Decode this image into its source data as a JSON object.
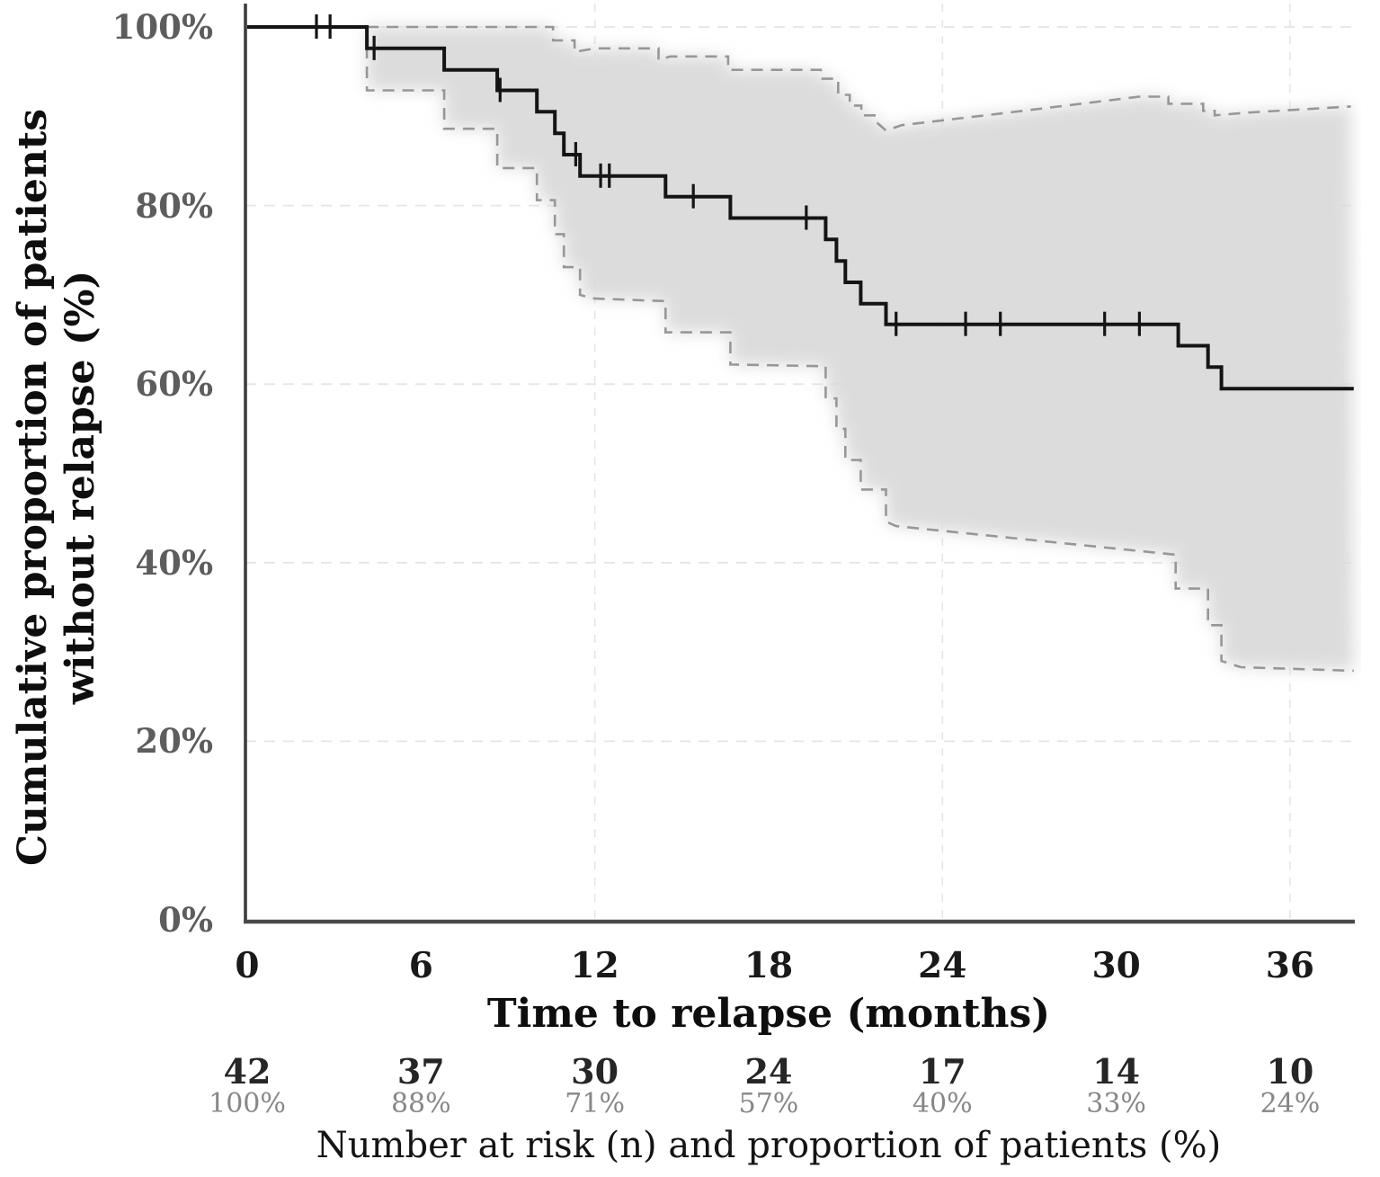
{
  "figure": {
    "ylabel_line1": "Cumulative proportion of patients",
    "ylabel_line2": "without relapse (%)",
    "xlabel": "Time to relapse (months)",
    "risk_caption": "Number at risk (n) and proportion of patients (%)"
  },
  "colors": {
    "curve": "#141414",
    "ci_line": "#979797",
    "ci_band": "#dadada",
    "grid": "#e5e5e5",
    "axis_y": "#3d3d3d",
    "axis_x": "#4a4a4a",
    "y_tick_text": "#5d5d5d",
    "x_tick_text": "#191919",
    "risk_pct_text": "#878787"
  },
  "chart_data": {
    "type": "line",
    "subtype": "kaplan-meier-step",
    "title": "",
    "xlabel": "Time to relapse (months)",
    "ylabel": "Cumulative proportion of patients without relapse (%)",
    "xlim": [
      0,
      38.5
    ],
    "ylim": [
      0,
      100
    ],
    "grid": {
      "horizontal_pct": [
        100,
        80,
        60,
        40,
        20
      ],
      "vertical_months": [
        12,
        24,
        36
      ]
    },
    "x_ticks": [
      {
        "value": 0,
        "label": "0"
      },
      {
        "value": 6,
        "label": "6"
      },
      {
        "value": 12,
        "label": "12"
      },
      {
        "value": 18,
        "label": "18"
      },
      {
        "value": 24,
        "label": "24"
      },
      {
        "value": 30,
        "label": "30"
      },
      {
        "value": 36,
        "label": "36"
      }
    ],
    "y_ticks": [
      {
        "value": 100,
        "label": "100%"
      },
      {
        "value": 80,
        "label": "80%"
      },
      {
        "value": 60,
        "label": "60%"
      },
      {
        "value": 40,
        "label": "40%"
      },
      {
        "value": 20,
        "label": "20%"
      },
      {
        "value": 0,
        "label": "0%"
      }
    ],
    "series": [
      {
        "name": "Kaplan-Meier estimate",
        "style": "solid-step",
        "points": [
          [
            0,
            100
          ],
          [
            4.13,
            100
          ],
          [
            4.13,
            97.6
          ],
          [
            6.8,
            97.6
          ],
          [
            6.8,
            95.2
          ],
          [
            8.63,
            95.2
          ],
          [
            8.63,
            92.9
          ],
          [
            10.0,
            92.9
          ],
          [
            10.0,
            90.5
          ],
          [
            10.62,
            90.5
          ],
          [
            10.62,
            88.1
          ],
          [
            10.93,
            88.1
          ],
          [
            10.93,
            85.7
          ],
          [
            11.49,
            85.7
          ],
          [
            11.49,
            83.3
          ],
          [
            14.44,
            83.3
          ],
          [
            14.44,
            81.0
          ],
          [
            16.68,
            81.0
          ],
          [
            16.68,
            78.6
          ],
          [
            19.97,
            78.6
          ],
          [
            19.97,
            76.2
          ],
          [
            20.34,
            76.2
          ],
          [
            20.34,
            73.8
          ],
          [
            20.65,
            73.8
          ],
          [
            20.65,
            71.4
          ],
          [
            21.18,
            71.4
          ],
          [
            21.18,
            69.0
          ],
          [
            22.05,
            69.0
          ],
          [
            22.05,
            66.7
          ],
          [
            32.14,
            66.7
          ],
          [
            32.14,
            64.3
          ],
          [
            33.17,
            64.3
          ],
          [
            33.17,
            61.9
          ],
          [
            33.63,
            61.9
          ],
          [
            33.63,
            59.5
          ],
          [
            38.2,
            59.5
          ]
        ]
      },
      {
        "name": "Upper 95% CI",
        "style": "dashed-step",
        "points": [
          [
            4.13,
            100
          ],
          [
            10.56,
            100
          ],
          [
            10.56,
            98.5
          ],
          [
            11.3,
            98.5
          ],
          [
            11.3,
            97.2
          ],
          [
            12.0,
            97.6
          ],
          [
            14.2,
            97.6
          ],
          [
            14.2,
            96.3
          ],
          [
            14.6,
            96.7
          ],
          [
            16.6,
            96.7
          ],
          [
            16.6,
            95.2
          ],
          [
            19.8,
            95.2
          ],
          [
            19.8,
            94.2
          ],
          [
            20.4,
            94.2
          ],
          [
            20.4,
            92.4
          ],
          [
            20.8,
            92.4
          ],
          [
            20.8,
            91.2
          ],
          [
            21.2,
            91.2
          ],
          [
            21.2,
            90.1
          ],
          [
            21.7,
            90.1
          ],
          [
            21.7,
            89.4
          ],
          [
            22.05,
            88.4
          ],
          [
            22.6,
            89.0
          ],
          [
            26.0,
            90.3
          ],
          [
            30.8,
            92.2
          ],
          [
            31.8,
            92.2
          ],
          [
            31.8,
            91.4
          ],
          [
            33.0,
            91.4
          ],
          [
            33.0,
            90.6
          ],
          [
            33.4,
            90.6
          ],
          [
            33.4,
            90.1
          ],
          [
            34.5,
            90.4
          ],
          [
            38.1,
            91.1
          ]
        ]
      },
      {
        "name": "Lower 95% CI",
        "style": "dashed-step",
        "points": [
          [
            4.13,
            100
          ],
          [
            4.13,
            92.9
          ],
          [
            6.8,
            92.9
          ],
          [
            6.8,
            88.6
          ],
          [
            8.63,
            88.6
          ],
          [
            8.63,
            84.2
          ],
          [
            10.0,
            84.2
          ],
          [
            10.0,
            80.6
          ],
          [
            10.62,
            80.6
          ],
          [
            10.62,
            76.8
          ],
          [
            10.93,
            76.8
          ],
          [
            10.93,
            73.1
          ],
          [
            11.49,
            73.1
          ],
          [
            11.49,
            70.0
          ],
          [
            11.9,
            69.6
          ],
          [
            14.44,
            69.3
          ],
          [
            14.44,
            65.8
          ],
          [
            16.68,
            65.8
          ],
          [
            16.68,
            62.2
          ],
          [
            19.97,
            62.0
          ],
          [
            19.97,
            58.4
          ],
          [
            20.34,
            58.4
          ],
          [
            20.34,
            55.0
          ],
          [
            20.65,
            55.0
          ],
          [
            20.65,
            51.5
          ],
          [
            21.18,
            51.5
          ],
          [
            21.18,
            48.2
          ],
          [
            22.05,
            48.2
          ],
          [
            22.05,
            44.6
          ],
          [
            22.4,
            44.1
          ],
          [
            32.05,
            40.9
          ],
          [
            32.05,
            37.1
          ],
          [
            33.17,
            37.1
          ],
          [
            33.17,
            33.0
          ],
          [
            33.63,
            33.0
          ],
          [
            33.63,
            29.0
          ],
          [
            34.3,
            28.3
          ],
          [
            38.2,
            27.9
          ]
        ]
      }
    ],
    "censor_marks": [
      [
        2.39,
        100
      ],
      [
        2.86,
        100
      ],
      [
        4.38,
        97.6
      ],
      [
        8.73,
        92.9
      ],
      [
        11.34,
        85.7
      ],
      [
        12.2,
        83.3
      ],
      [
        12.5,
        83.3
      ],
      [
        15.4,
        81.0
      ],
      [
        19.3,
        78.6
      ],
      [
        22.4,
        66.7
      ],
      [
        24.8,
        66.7
      ],
      [
        26.0,
        66.7
      ],
      [
        29.6,
        66.7
      ],
      [
        30.8,
        66.7
      ]
    ],
    "risk_table": {
      "months": [
        0,
        6,
        12,
        18,
        24,
        30,
        36
      ],
      "n": [
        "42",
        "37",
        "30",
        "24",
        "17",
        "14",
        "10"
      ],
      "pct": [
        "100%",
        "88%",
        "71%",
        "57%",
        "40%",
        "33%",
        "24%"
      ],
      "caption": "Number at risk (n) and proportion of patients (%)"
    },
    "legend": {
      "visible": false
    }
  }
}
